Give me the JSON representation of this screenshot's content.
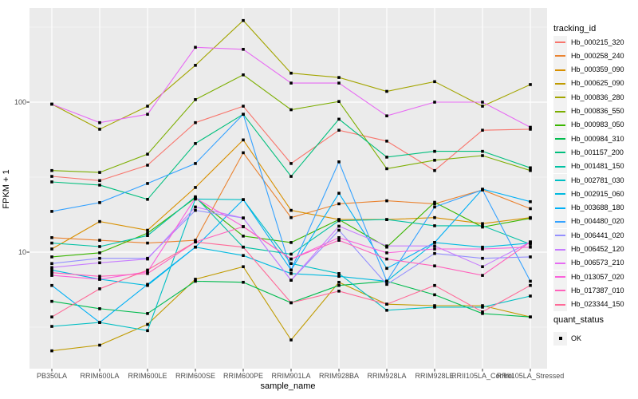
{
  "figure": {
    "background": "#FFFFFF",
    "panel_background": "#EBEBEB",
    "grid_major_color": "#FFFFFF",
    "grid_minor_color": "#F6F6F6",
    "axis_text_color": "#4D4D4D",
    "marker_color": "#000000"
  },
  "axes": {
    "y": {
      "title": "FPKM + 1",
      "scale": "log10",
      "tick_labels": [
        "100",
        "10"
      ],
      "tick_values": [
        100,
        10
      ]
    },
    "x": {
      "title": "sample_name"
    }
  },
  "legend": {
    "tracking_title": "tracking_id",
    "quant_title": "quant_status",
    "quant_items": [
      {
        "label": "OK",
        "marker": "black-square"
      }
    ]
  },
  "chart_data": {
    "type": "line",
    "title": "",
    "xlabel": "sample_name",
    "ylabel": "FPKM + 1",
    "y_scale": "log10",
    "ylim": [
      1.67,
      424
    ],
    "y_major_gridlines": [
      10,
      100
    ],
    "y_minor_gridlines": [
      3.162,
      31.62,
      316.2
    ],
    "grid": true,
    "legend_position": "right",
    "point_marker": "black-square",
    "quant_status": "OK",
    "categories": [
      "PB350LA",
      "RRIM600LA",
      "RRIM600LE",
      "RRIM600SE",
      "RRIM600PE",
      "RRIM901LA",
      "RRIM928BA",
      "RRIM928LA",
      "RRIM928LE",
      "RRII105LA_Control",
      "RRII105LA_Stressed"
    ],
    "series": [
      {
        "name": "Hb_000215_320",
        "color": "#F8766D",
        "values": [
          32,
          30,
          38,
          73,
          94,
          39,
          65,
          55,
          35,
          65,
          66
        ]
      },
      {
        "name": "Hb_000258_240",
        "color": "#EA8331",
        "values": [
          12.5,
          12,
          11.5,
          12,
          46,
          17,
          21,
          22,
          21,
          26,
          19.5
        ]
      },
      {
        "name": "Hb_000359_090",
        "color": "#D89000",
        "values": [
          10.5,
          16,
          14,
          27,
          56,
          19,
          16.5,
          16.5,
          17,
          15.5,
          17
        ]
      },
      {
        "name": "Hb_000625_090",
        "color": "#C09B00",
        "values": [
          2.2,
          2.4,
          3.3,
          6.6,
          8,
          2.6,
          6.3,
          4.5,
          4.4,
          4.4,
          3.7
        ]
      },
      {
        "name": "Hb_000836_280",
        "color": "#A3A500",
        "values": [
          97,
          66,
          94,
          176,
          350,
          156,
          146,
          118,
          137,
          94,
          131
        ]
      },
      {
        "name": "Hb_000836_550",
        "color": "#7CAE00",
        "values": [
          35,
          34,
          45,
          104,
          152,
          89,
          101,
          36,
          41,
          44,
          35
        ]
      },
      {
        "name": "Hb_000983_050",
        "color": "#39B600",
        "values": [
          9.3,
          9.9,
          13.4,
          23,
          12.8,
          11.6,
          16.5,
          10.8,
          21.5,
          14.7,
          16.8
        ]
      },
      {
        "name": "Hb_000984_310",
        "color": "#00BB4E",
        "values": [
          4.7,
          4.2,
          3.9,
          6.4,
          6.3,
          4.6,
          6,
          6.4,
          5.2,
          3.9,
          3.7
        ]
      },
      {
        "name": "Hb_001157_200",
        "color": "#00BF7D",
        "values": [
          29.4,
          28,
          22.5,
          53,
          83,
          32,
          77,
          43,
          47,
          47,
          36.5
        ]
      },
      {
        "name": "Hb_001481_150",
        "color": "#00C1A3",
        "values": [
          11.5,
          10.9,
          12.9,
          23.4,
          10.8,
          9.7,
          16.2,
          16.5,
          15,
          15,
          11.3
        ]
      },
      {
        "name": "Hb_002781_030",
        "color": "#00BFC4",
        "values": [
          3.2,
          3.4,
          3,
          22.6,
          22.4,
          8.4,
          7.2,
          4.1,
          4.3,
          4.3,
          5.1
        ]
      },
      {
        "name": "Hb_002915_060",
        "color": "#00BAE0",
        "values": [
          7.6,
          6.6,
          6,
          10.8,
          9.5,
          7.2,
          6.9,
          6.4,
          11.6,
          10.8,
          11.5
        ]
      },
      {
        "name": "Hb_003688_180",
        "color": "#00B0F6",
        "values": [
          6,
          3.4,
          6.1,
          10.8,
          22.4,
          7.6,
          24.7,
          7.8,
          11.6,
          26.3,
          21.7
        ]
      },
      {
        "name": "Hb_004480_020",
        "color": "#35A2FF",
        "values": [
          18.7,
          21.4,
          28.7,
          39,
          83,
          7.6,
          40,
          6.4,
          20,
          26,
          6.4
        ]
      },
      {
        "name": "Hb_006441_020",
        "color": "#9590FF",
        "values": [
          8.4,
          9.1,
          9.1,
          19,
          16.9,
          6.5,
          14,
          6.1,
          9.8,
          9.1,
          9.3
        ]
      },
      {
        "name": "Hb_006452_120",
        "color": "#C77CFF",
        "values": [
          7.9,
          8.5,
          9,
          20,
          16.9,
          6.5,
          14.9,
          11,
          11,
          8,
          11.7
        ]
      },
      {
        "name": "Hb_006573_210",
        "color": "#E76BF3",
        "values": [
          97,
          73,
          83,
          232,
          225,
          134,
          134,
          81,
          100,
          100,
          68
        ]
      },
      {
        "name": "Hb_013057_020",
        "color": "#FA62DB",
        "values": [
          7,
          6.6,
          7.4,
          23,
          14.8,
          9,
          12.5,
          9.9,
          10.5,
          10.5,
          10.8
        ]
      },
      {
        "name": "Hb_017387_010",
        "color": "#FF62BC",
        "values": [
          7.3,
          6.9,
          7.2,
          11.7,
          14.8,
          9,
          12,
          9,
          8.1,
          7,
          11.7
        ]
      },
      {
        "name": "Hb_023344_150",
        "color": "#FF6A98",
        "values": [
          3.7,
          5.7,
          7.6,
          11.7,
          10.8,
          4.6,
          5.5,
          4.5,
          6,
          4,
          6
        ]
      }
    ]
  }
}
